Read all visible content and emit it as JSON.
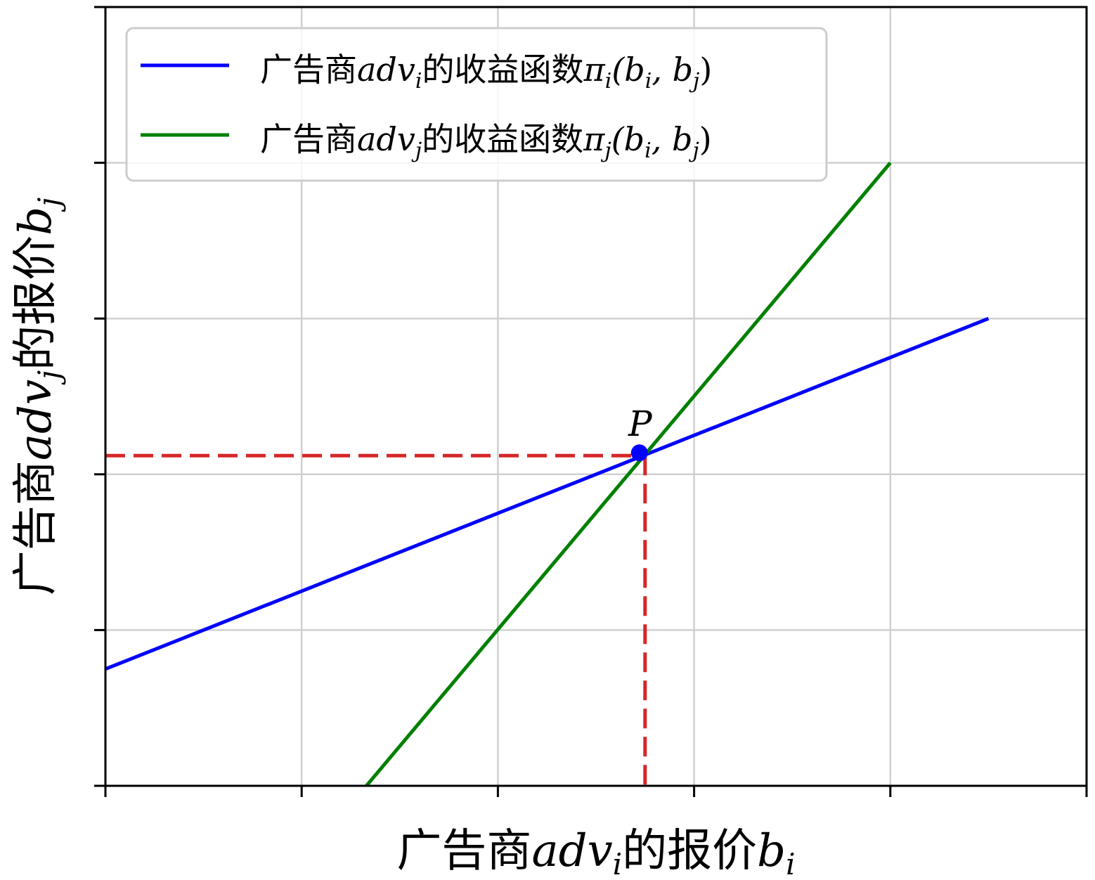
{
  "chart_data": {
    "type": "line",
    "title": "",
    "xlabel": {
      "prefix": "广告商",
      "var": "adv",
      "sub": "i",
      "mid": "的报价",
      "var2": "b",
      "sub2": "i"
    },
    "ylabel": {
      "prefix": "广告商",
      "var": "adv",
      "sub": "j",
      "mid": "的报价",
      "var2": "b",
      "sub2": "j"
    },
    "xlim": [
      0,
      5
    ],
    "ylim": [
      0,
      5
    ],
    "xticks": [
      0,
      1,
      2,
      3,
      4,
      5
    ],
    "yticks": [
      0,
      1,
      2,
      3,
      4,
      5
    ],
    "tick_labels_visible": false,
    "grid": true,
    "legend_position": "upper-left",
    "series": [
      {
        "legend": {
          "prefix": "广告商",
          "var": "adv",
          "sub": "i",
          "mid": "的收益函数",
          "func": "π",
          "fsub": "i",
          "args": "(b",
          "a1": "i",
          "sep": ", b",
          "a2": "j",
          "close": ")"
        },
        "color": "#0000ff",
        "x": [
          0,
          4.5
        ],
        "y": [
          0.75,
          3.0
        ]
      },
      {
        "legend": {
          "prefix": "广告商",
          "var": "adv",
          "sub": "j",
          "mid": "的收益函数",
          "func": "π",
          "fsub": "j",
          "args": "(b",
          "a1": "i",
          "sep": ", b",
          "a2": "j",
          "close": ")"
        },
        "color": "#008000",
        "x": [
          1.33,
          4.0
        ],
        "y": [
          0,
          4.0
        ]
      }
    ],
    "intersection": {
      "label": "P",
      "x": 2.75,
      "y": 2.12,
      "color": "#0000ff"
    },
    "guide_color": "#d62728"
  }
}
